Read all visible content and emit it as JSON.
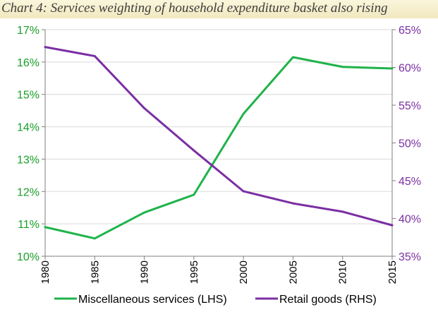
{
  "title": "Chart 4: Services weighting of household expenditure basket also rising",
  "chart_data": {
    "type": "line",
    "x": [
      "1980",
      "1985",
      "1990",
      "1995",
      "2000",
      "2005",
      "2010",
      "2015"
    ],
    "series": [
      {
        "name": "Miscellaneous services (LHS)",
        "axis": "left",
        "color": "#1fb34a",
        "values": [
          10.9,
          10.55,
          11.35,
          11.9,
          14.4,
          16.15,
          15.85,
          15.8
        ]
      },
      {
        "name": "Retail goods (RHS)",
        "axis": "right",
        "color": "#7b2fa3",
        "values": [
          62.7,
          61.5,
          54.6,
          49.0,
          43.6,
          42.0,
          40.9,
          39.1
        ]
      }
    ],
    "ylim_left": [
      10,
      17
    ],
    "ylim_right": [
      35,
      65
    ],
    "yticks_left": [
      "10%",
      "11%",
      "12%",
      "13%",
      "14%",
      "15%",
      "16%",
      "17%"
    ],
    "yticks_right": [
      "35%",
      "40%",
      "45%",
      "50%",
      "55%",
      "60%",
      "65%"
    ],
    "grid": true,
    "legend_position": "bottom"
  }
}
